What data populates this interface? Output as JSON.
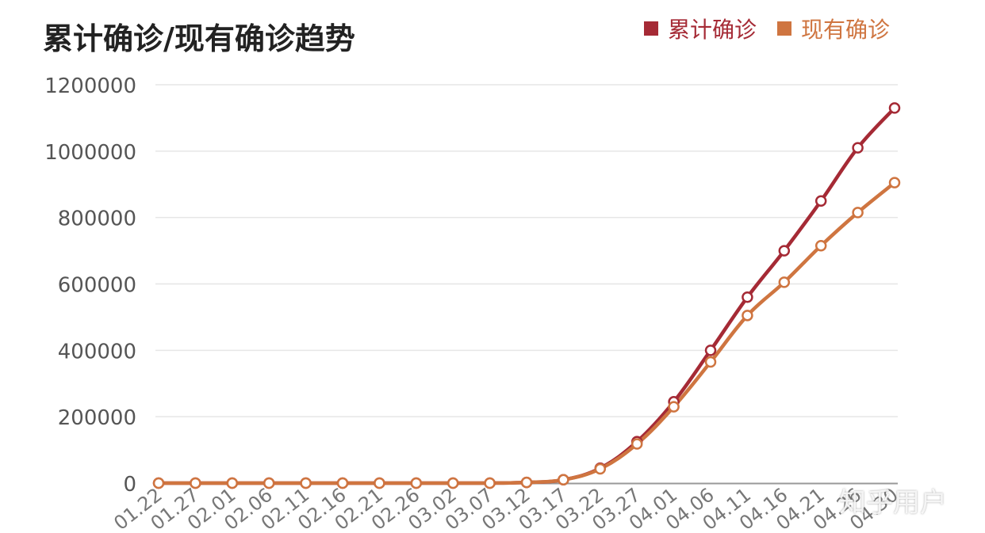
{
  "chart_data": {
    "type": "line",
    "title": "累计确诊/现有确诊趋势",
    "ylim": [
      0,
      1200000
    ],
    "yticks": [
      0,
      200000,
      400000,
      600000,
      800000,
      1000000,
      1200000
    ],
    "grid": true,
    "legend_position": "top-right",
    "categories": [
      "01.22",
      "01.27",
      "02.01",
      "02.06",
      "02.11",
      "02.16",
      "02.21",
      "02.26",
      "03.02",
      "03.07",
      "03.12",
      "03.17",
      "03.22",
      "03.27",
      "04.01",
      "04.06",
      "04.11",
      "04.16",
      "04.21",
      "04.26",
      "04.30"
    ],
    "series": [
      {
        "name": "累计确诊",
        "color": "#a52a35",
        "values": [
          0,
          0,
          0,
          0,
          0,
          0,
          0,
          0,
          0,
          0,
          2000,
          10000,
          45000,
          125000,
          245000,
          400000,
          560000,
          700000,
          850000,
          1010000,
          1130000
        ]
      },
      {
        "name": "现有确诊",
        "color": "#cf7540",
        "values": [
          0,
          0,
          0,
          0,
          0,
          0,
          0,
          0,
          0,
          0,
          2000,
          10000,
          43000,
          118000,
          230000,
          365000,
          505000,
          605000,
          715000,
          815000,
          905000
        ]
      }
    ]
  },
  "watermark": "知乎用户"
}
